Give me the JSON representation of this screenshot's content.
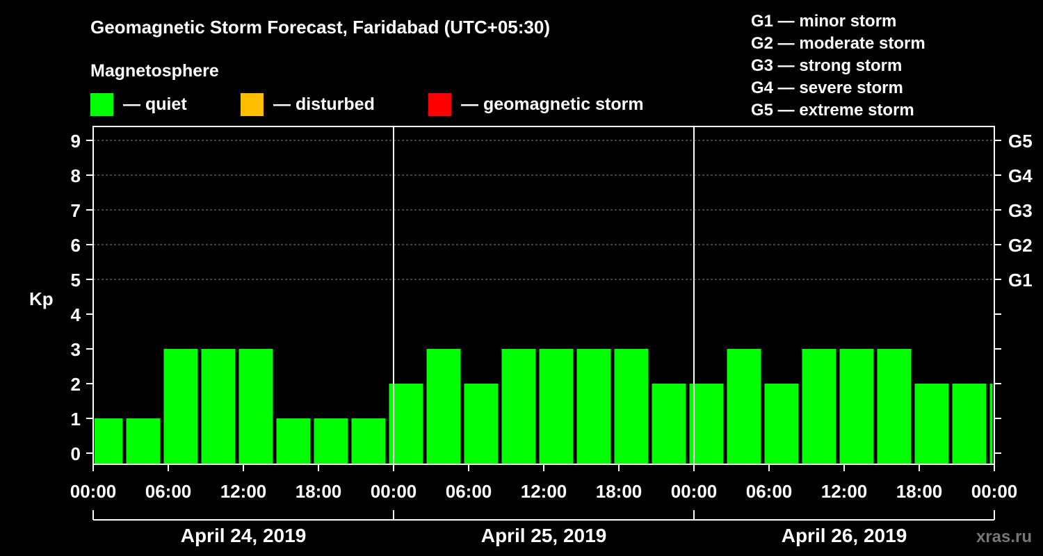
{
  "title": "Geomagnetic Storm Forecast, Faridabad (UTC+05:30)",
  "legend": {
    "heading": "Magnetosphere",
    "items": [
      {
        "label": "— quiet",
        "color": "#00ff00"
      },
      {
        "label": "— disturbed",
        "color": "#ffbf00"
      },
      {
        "label": "— geomagnetic storm",
        "color": "#ff0000"
      }
    ]
  },
  "storm_scale": [
    "G1 — minor storm",
    "G2 — moderate storm",
    "G3 — strong storm",
    "G4 — severe storm",
    "G5 — extreme storm"
  ],
  "watermark": "xras.ru",
  "chart_data": {
    "type": "bar",
    "ylabel": "Kp",
    "ylim": [
      0,
      9
    ],
    "y_ticks": [
      "0",
      "1",
      "2",
      "3",
      "4",
      "5",
      "6",
      "7",
      "8",
      "9"
    ],
    "right_axis_labels": [
      {
        "kp": 5,
        "label": "G1"
      },
      {
        "kp": 6,
        "label": "G2"
      },
      {
        "kp": 7,
        "label": "G3"
      },
      {
        "kp": 8,
        "label": "G4"
      },
      {
        "kp": 9,
        "label": "G5"
      }
    ],
    "x_tick_labels": [
      "00:00",
      "06:00",
      "12:00",
      "18:00",
      "00:00",
      "06:00",
      "12:00",
      "18:00",
      "00:00",
      "06:00",
      "12:00",
      "18:00",
      "00:00"
    ],
    "days": [
      "April 24, 2019",
      "April 25, 2019",
      "April 26, 2019"
    ],
    "grid": true,
    "bar_color": "#00ff00",
    "bars": [
      {
        "start_hour": -0.5,
        "end_hour": 2.5,
        "kp": 1
      },
      {
        "start_hour": 2.5,
        "end_hour": 5.5,
        "kp": 1
      },
      {
        "start_hour": 5.5,
        "end_hour": 8.5,
        "kp": 3
      },
      {
        "start_hour": 8.5,
        "end_hour": 11.5,
        "kp": 3
      },
      {
        "start_hour": 11.5,
        "end_hour": 14.5,
        "kp": 3
      },
      {
        "start_hour": 14.5,
        "end_hour": 17.5,
        "kp": 1
      },
      {
        "start_hour": 17.5,
        "end_hour": 20.5,
        "kp": 1
      },
      {
        "start_hour": 20.5,
        "end_hour": 23.5,
        "kp": 1
      },
      {
        "start_hour": 23.5,
        "end_hour": 26.5,
        "kp": 2
      },
      {
        "start_hour": 26.5,
        "end_hour": 29.5,
        "kp": 3
      },
      {
        "start_hour": 29.5,
        "end_hour": 32.5,
        "kp": 2
      },
      {
        "start_hour": 32.5,
        "end_hour": 35.5,
        "kp": 3
      },
      {
        "start_hour": 35.5,
        "end_hour": 38.5,
        "kp": 3
      },
      {
        "start_hour": 38.5,
        "end_hour": 41.5,
        "kp": 3
      },
      {
        "start_hour": 41.5,
        "end_hour": 44.5,
        "kp": 3
      },
      {
        "start_hour": 44.5,
        "end_hour": 47.5,
        "kp": 2
      },
      {
        "start_hour": 47.5,
        "end_hour": 50.5,
        "kp": 2
      },
      {
        "start_hour": 50.5,
        "end_hour": 53.5,
        "kp": 3
      },
      {
        "start_hour": 53.5,
        "end_hour": 56.5,
        "kp": 2
      },
      {
        "start_hour": 56.5,
        "end_hour": 59.5,
        "kp": 3
      },
      {
        "start_hour": 59.5,
        "end_hour": 62.5,
        "kp": 3
      },
      {
        "start_hour": 62.5,
        "end_hour": 65.5,
        "kp": 3
      },
      {
        "start_hour": 65.5,
        "end_hour": 68.5,
        "kp": 2
      },
      {
        "start_hour": 68.5,
        "end_hour": 71.5,
        "kp": 2
      },
      {
        "start_hour": 71.5,
        "end_hour": 72,
        "kp": 2
      }
    ]
  }
}
